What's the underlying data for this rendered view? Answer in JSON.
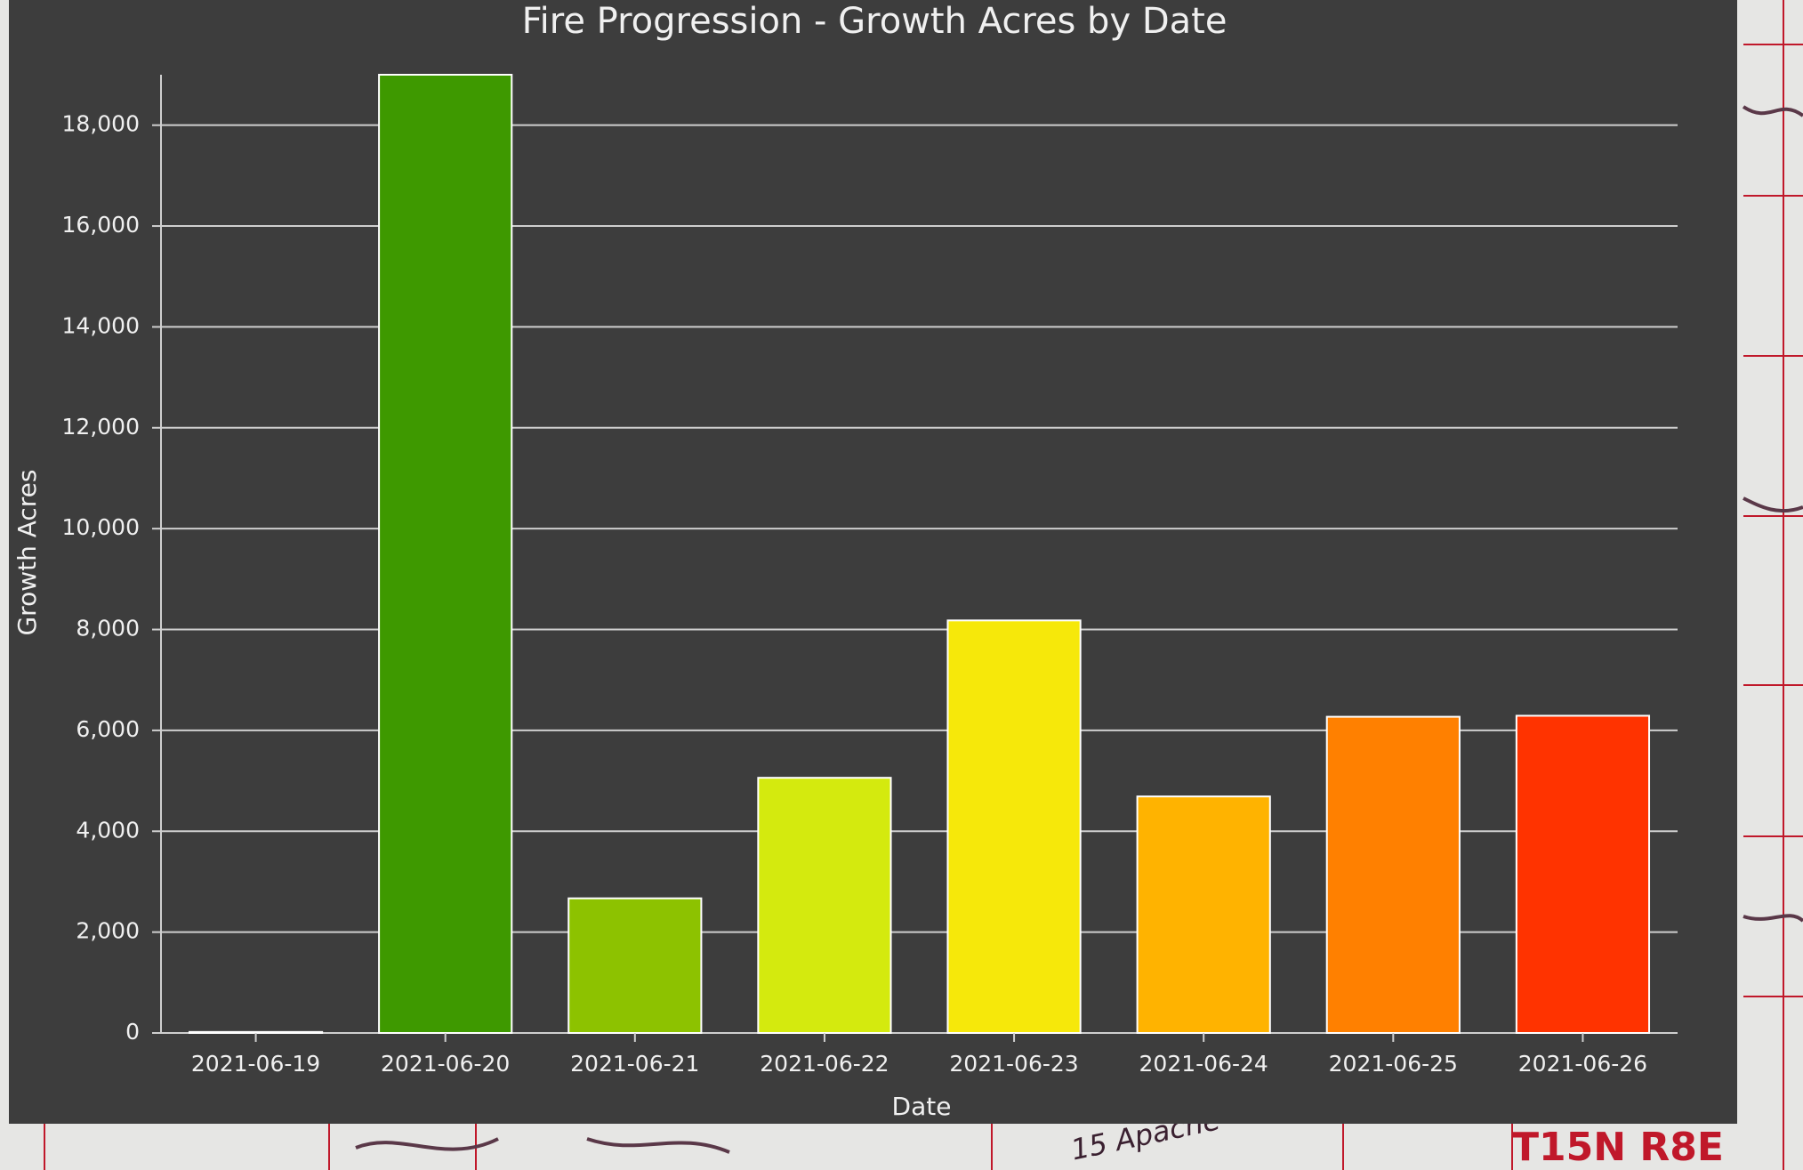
{
  "chart_data": {
    "type": "bar",
    "title": "Fire Progression - Growth Acres by Date",
    "x_label": "Date",
    "y_label": "Growth Acres",
    "categories": [
      "2021-06-19",
      "2021-06-20",
      "2021-06-21",
      "2021-06-22",
      "2021-06-23",
      "2021-06-24",
      "2021-06-25",
      "2021-06-26"
    ],
    "values": [
      20,
      19000,
      2670,
      5060,
      8180,
      4690,
      6270,
      6290
    ],
    "colors": [
      "#2a7f00",
      "#3e9900",
      "#8dc200",
      "#d4ea0e",
      "#f6e80a",
      "#ffb300",
      "#ff8000",
      "#ff3300"
    ],
    "ylim": [
      0,
      19000
    ],
    "yticks": [
      0,
      {
        "value": 2000,
        "label": "2,000"
      },
      {
        "value": 4000,
        "label": "4,000"
      },
      {
        "value": 6000,
        "label": "6,000"
      },
      {
        "value": 8000,
        "label": "8,000"
      },
      {
        "value": 10000,
        "label": "10,000"
      },
      {
        "value": 12000,
        "label": "12,000"
      },
      {
        "value": 14000,
        "label": "14,000"
      },
      {
        "value": 16000,
        "label": "16,000"
      },
      {
        "value": 18000,
        "label": "18,000"
      }
    ],
    "grid": true
  },
  "map_labels": [
    "T15N R8E",
    "15 Apache"
  ]
}
